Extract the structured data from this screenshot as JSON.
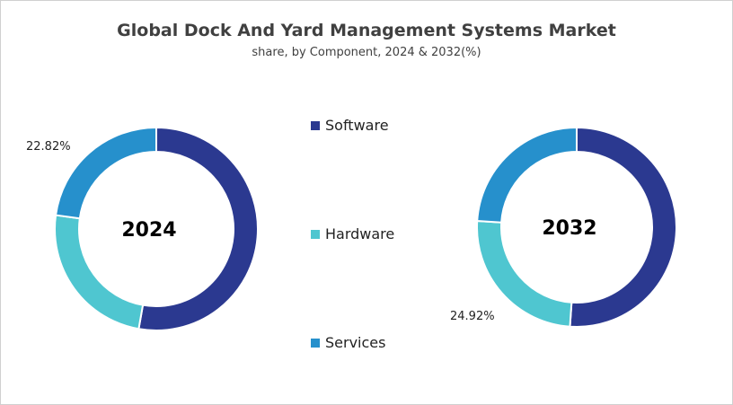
{
  "chart_data": {
    "type": "pie",
    "title": "Global Dock And Yard Management Systems Market",
    "subtitle": "share, by Component, 2024 & 2032(%)",
    "categories": [
      "Software",
      "Hardware",
      "Services"
    ],
    "colors": [
      "#2B3990",
      "#4FC6D0",
      "#2690CC"
    ],
    "legend_position": "center",
    "donut": true,
    "charts": [
      {
        "label": "2024",
        "values": [
          52.78,
          24.4,
          22.82
        ],
        "printed_labels": [
          {
            "category": "Services",
            "text": "22.82%"
          }
        ]
      },
      {
        "label": "2032",
        "values": [
          51.08,
          24.92,
          24.0
        ],
        "printed_labels": [
          {
            "category": "Hardware",
            "text": "24.92%"
          }
        ]
      }
    ]
  }
}
